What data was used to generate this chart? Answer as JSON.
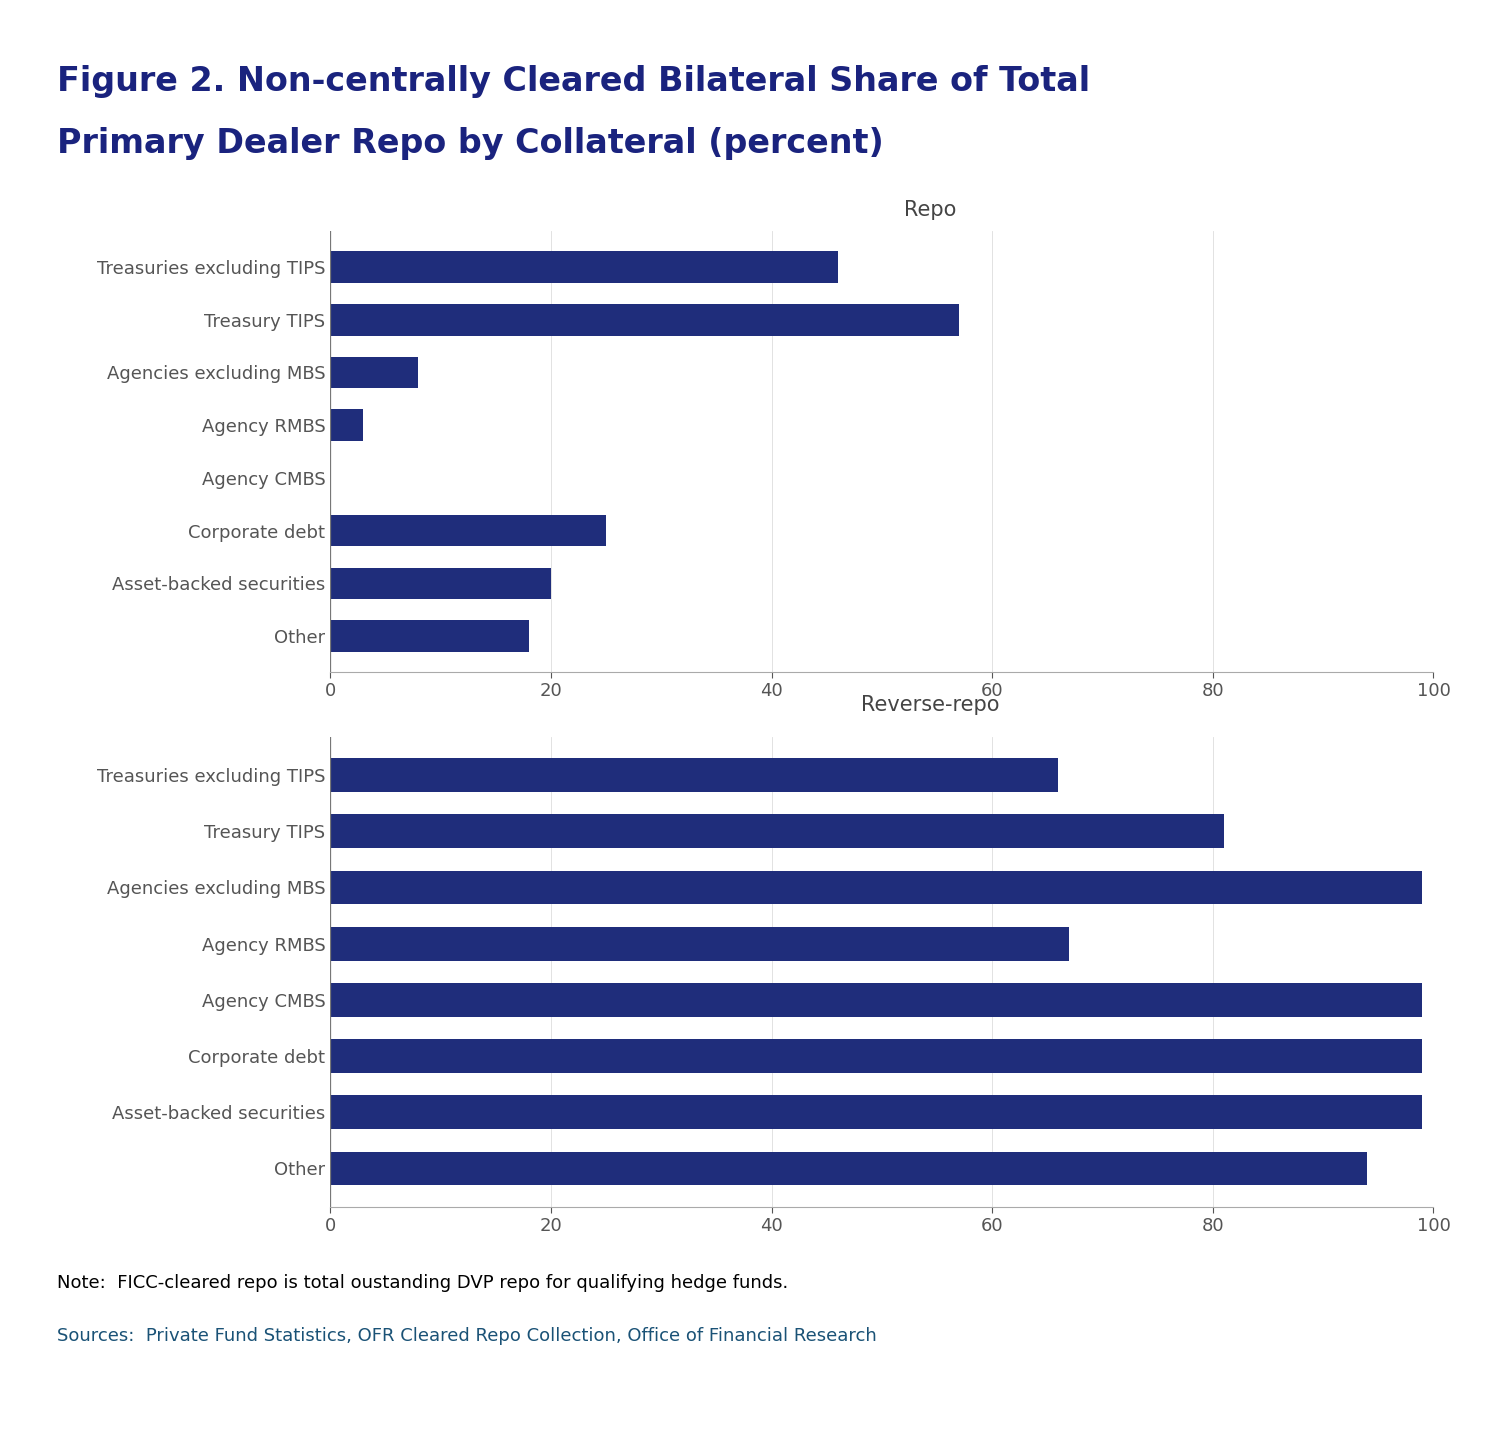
{
  "title_line1": "Figure 2. Non-centrally Cleared Bilateral Share of Total",
  "title_line2": "Primary Dealer Repo by Collateral (percent)",
  "title_color": "#1a237e",
  "bar_color": "#1f2d7b",
  "background_color": "#ffffff",
  "categories": [
    "Treasuries excluding TIPS",
    "Treasury TIPS",
    "Agencies excluding MBS",
    "Agency RMBS",
    "Agency CMBS",
    "Corporate debt",
    "Asset-backed securities",
    "Other"
  ],
  "repo_values": [
    46,
    57,
    8,
    3,
    0,
    25,
    20,
    18
  ],
  "reverse_repo_values": [
    66,
    81,
    99,
    67,
    99,
    99,
    99,
    94
  ],
  "repo_label": "Repo",
  "reverse_repo_label": "Reverse-repo",
  "xlim": [
    0,
    100
  ],
  "xticks": [
    0,
    20,
    40,
    60,
    80,
    100
  ],
  "note_text": "Note:  FICC-cleared repo is total oustanding DVP repo for qualifying hedge funds.",
  "sources_text": "Sources:  Private Fund Statistics, OFR Cleared Repo Collection, Office of Financial Research",
  "note_color": "#000000",
  "sources_color": "#1a5276",
  "label_color": "#444444",
  "tick_label_color": "#555555",
  "top_line_color": "#1a237e",
  "title_fontsize": 24,
  "label_fontsize": 15,
  "tick_fontsize": 13,
  "note_fontsize": 13,
  "sources_fontsize": 13
}
